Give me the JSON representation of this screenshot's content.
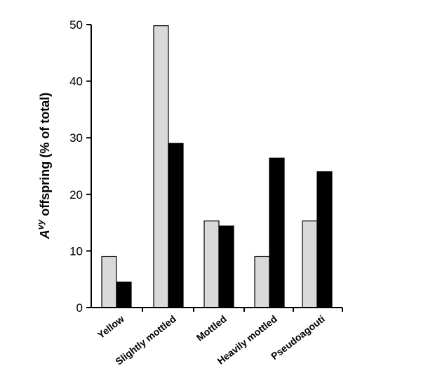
{
  "chart_data": {
    "type": "bar",
    "title": "",
    "xlabel": "",
    "ylabel": {
      "prefix": "A",
      "superscript": "vy",
      "suffix": " offspring (% of total)"
    },
    "categories": [
      "Yellow",
      "Slightly mottled",
      "Mottled",
      "Heavily mottled",
      "Pseudoagouti"
    ],
    "series": [
      {
        "name": "light",
        "color": "#d9d9d9",
        "values": [
          9,
          49.8,
          15.3,
          9,
          15.3
        ]
      },
      {
        "name": "dark",
        "color": "#000000",
        "values": [
          4.5,
          29,
          14.4,
          26.4,
          24
        ]
      }
    ],
    "ylim": [
      0,
      50
    ],
    "yticks": [
      0,
      10,
      20,
      30,
      40,
      50
    ],
    "grid": false,
    "legend": "none"
  }
}
